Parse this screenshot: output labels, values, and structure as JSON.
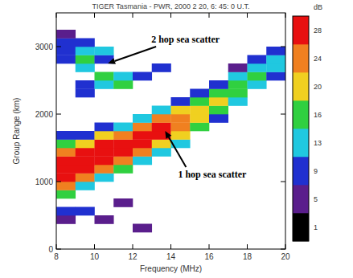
{
  "chart_data": {
    "type": "heatmap",
    "title": "TIGER Tasmania - PWR, 2000 2 20, 6: 45: 0 U.T.",
    "x_label": "Frequency (MHz)",
    "y_label": "Group Range (km)",
    "xlim": [
      8,
      20
    ],
    "xticks": [
      8,
      10,
      12,
      14,
      16,
      18,
      20
    ],
    "ylim": [
      0,
      3500
    ],
    "yticks": [
      0,
      1000,
      2000,
      3000
    ],
    "x_bins": [
      8,
      9,
      10,
      11,
      12,
      13,
      14,
      15,
      16,
      17,
      18,
      19,
      20
    ],
    "y_bins": [
      0,
      125,
      250,
      375,
      500,
      625,
      750,
      875,
      1000,
      1125,
      1250,
      1375,
      1500,
      1625,
      1750,
      1875,
      2000,
      2125,
      2250,
      2375,
      2500,
      2625,
      2750,
      2875,
      3000,
      3125,
      3250,
      3375,
      3500
    ],
    "cells": [
      [
        null,
        null,
        null,
        null,
        null,
        null,
        null,
        null,
        null,
        null,
        null,
        null
      ],
      [
        null,
        null,
        null,
        null,
        null,
        null,
        null,
        null,
        null,
        null,
        null,
        null
      ],
      [
        null,
        null,
        null,
        null,
        5,
        null,
        null,
        null,
        null,
        null,
        null,
        null
      ],
      [
        5,
        null,
        5,
        null,
        null,
        null,
        null,
        null,
        null,
        null,
        null,
        null
      ],
      [
        9,
        9,
        null,
        null,
        null,
        null,
        null,
        null,
        null,
        null,
        null,
        null
      ],
      [
        null,
        null,
        null,
        5,
        null,
        null,
        null,
        null,
        null,
        null,
        null,
        null
      ],
      [
        16,
        null,
        null,
        null,
        null,
        null,
        null,
        null,
        null,
        null,
        null,
        null
      ],
      [
        24,
        13,
        null,
        null,
        null,
        null,
        null,
        null,
        null,
        null,
        null,
        null
      ],
      [
        28,
        24,
        13,
        null,
        null,
        null,
        null,
        null,
        null,
        null,
        null,
        null
      ],
      [
        28,
        28,
        24,
        16,
        null,
        null,
        null,
        null,
        null,
        null,
        null,
        null
      ],
      [
        28,
        28,
        28,
        24,
        13,
        null,
        null,
        null,
        null,
        null,
        null,
        null
      ],
      [
        24,
        28,
        28,
        28,
        24,
        13,
        null,
        null,
        null,
        null,
        null,
        null
      ],
      [
        16,
        20,
        28,
        28,
        28,
        20,
        13,
        null,
        null,
        null,
        null,
        null
      ],
      [
        9,
        9,
        20,
        24,
        28,
        28,
        20,
        null,
        null,
        null,
        null,
        null
      ],
      [
        null,
        null,
        9,
        13,
        24,
        28,
        24,
        16,
        null,
        null,
        null,
        null
      ],
      [
        null,
        null,
        null,
        null,
        13,
        24,
        24,
        20,
        9,
        null,
        null,
        null
      ],
      [
        null,
        null,
        null,
        null,
        null,
        13,
        20,
        20,
        16,
        null,
        null,
        null
      ],
      [
        null,
        null,
        null,
        null,
        null,
        null,
        9,
        16,
        20,
        13,
        null,
        null
      ],
      [
        null,
        9,
        null,
        null,
        null,
        null,
        null,
        9,
        16,
        16,
        null,
        null
      ],
      [
        null,
        9,
        13,
        16,
        null,
        null,
        null,
        null,
        9,
        16,
        13,
        null
      ],
      [
        null,
        null,
        16,
        13,
        9,
        null,
        null,
        null,
        null,
        13,
        16,
        9
      ],
      [
        null,
        13,
        null,
        null,
        null,
        9,
        null,
        null,
        null,
        5,
        13,
        13
      ],
      [
        9,
        16,
        9,
        null,
        null,
        null,
        null,
        null,
        null,
        null,
        9,
        13
      ],
      [
        9,
        13,
        13,
        null,
        null,
        null,
        null,
        null,
        null,
        null,
        null,
        9
      ],
      [
        9,
        9,
        null,
        null,
        null,
        null,
        null,
        null,
        null,
        null,
        null,
        null
      ],
      [
        5,
        null,
        null,
        null,
        null,
        null,
        null,
        null,
        null,
        null,
        null,
        null
      ],
      [
        null,
        null,
        null,
        null,
        null,
        null,
        null,
        null,
        null,
        null,
        null,
        null
      ],
      [
        null,
        null,
        null,
        null,
        null,
        null,
        null,
        null,
        null,
        null,
        null,
        null
      ]
    ],
    "colorbar": {
      "label": "dB",
      "ticks": [
        1,
        5,
        9,
        13,
        16,
        20,
        24,
        28
      ]
    },
    "annotations": [
      {
        "text": "2 hop sea scatter",
        "x": 10.7,
        "y": 2750
      },
      {
        "text": "1 hop sea scatter",
        "x": 13.7,
        "y": 1750
      }
    ]
  }
}
